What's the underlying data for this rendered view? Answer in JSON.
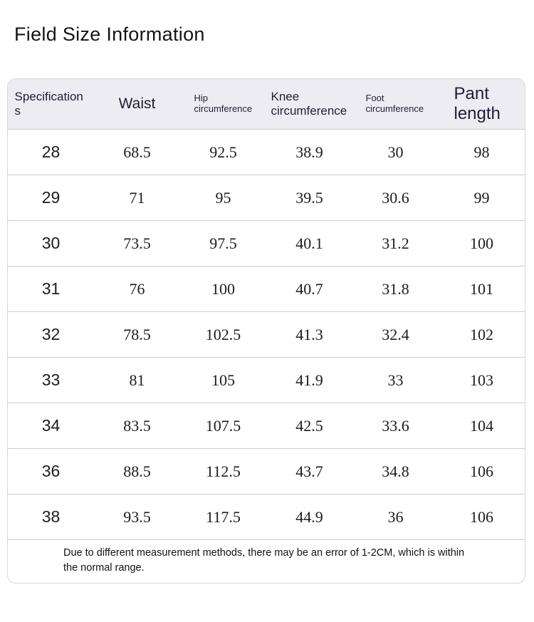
{
  "page": {
    "title": "Field Size Information"
  },
  "table": {
    "columns": [
      {
        "key": "spec",
        "label": "Specifications"
      },
      {
        "key": "waist",
        "label": "Waist"
      },
      {
        "key": "hip",
        "label": "Hip circumference"
      },
      {
        "key": "knee",
        "label": "Knee circumference"
      },
      {
        "key": "foot",
        "label": "Foot circumference"
      },
      {
        "key": "pant",
        "label": "Pant length"
      }
    ],
    "rows": [
      [
        "28",
        "68.5",
        "92.5",
        "38.9",
        "30",
        "98"
      ],
      [
        "29",
        "71",
        "95",
        "39.5",
        "30.6",
        "99"
      ],
      [
        "30",
        "73.5",
        "97.5",
        "40.1",
        "31.2",
        "100"
      ],
      [
        "31",
        "76",
        "100",
        "40.7",
        "31.8",
        "101"
      ],
      [
        "32",
        "78.5",
        "102.5",
        "41.3",
        "32.4",
        "102"
      ],
      [
        "33",
        "81",
        "105",
        "41.9",
        "33",
        "103"
      ],
      [
        "34",
        "83.5",
        "107.5",
        "42.5",
        "33.6",
        "104"
      ],
      [
        "36",
        "88.5",
        "112.5",
        "43.7",
        "34.8",
        "106"
      ],
      [
        "38",
        "93.5",
        "117.5",
        "44.9",
        "36",
        "106"
      ]
    ],
    "note": "Due to different measurement methods, there may be an error of 1-2CM, which is within the normal range."
  },
  "colors": {
    "header_bg": "#ececf2",
    "border": "#d7d7d9",
    "row_divider": "#cdcdcf",
    "header_text": "#1f1f33",
    "body_text": "#1c1c1c"
  }
}
